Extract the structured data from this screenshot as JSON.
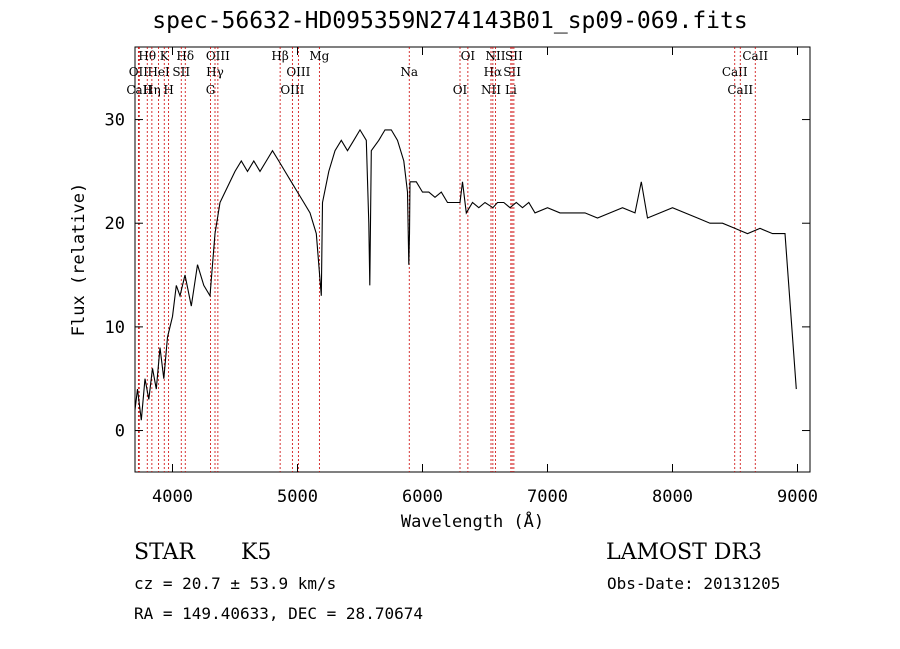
{
  "chart_data": {
    "type": "line",
    "title": "spec-56632-HD095359N274143B01_sp09-069.fits",
    "xlabel": "Wavelength (Å)",
    "ylabel": "Flux (relative)",
    "xlim": [
      3700,
      9100
    ],
    "ylim": [
      -4,
      37
    ],
    "xticks": [
      4000,
      5000,
      6000,
      7000,
      8000,
      9000
    ],
    "yticks": [
      0,
      10,
      20,
      30
    ],
    "grid": false,
    "series_color": "#000000",
    "line_color": "#cc0000",
    "series": [
      {
        "x": [
          3700,
          3720,
          3750,
          3780,
          3810,
          3840,
          3870,
          3900,
          3930,
          3960,
          4000,
          4030,
          4060,
          4100,
          4150,
          4200,
          4250,
          4300,
          4340,
          4380,
          4420,
          4460,
          4500,
          4550,
          4600,
          4650,
          4700,
          4750,
          4800,
          4850,
          4900,
          4950,
          5000,
          5050,
          5100,
          5150,
          5190,
          5200,
          5250,
          5300,
          5350,
          5400,
          5450,
          5500,
          5550,
          5570,
          5578,
          5590,
          5650,
          5700,
          5750,
          5800,
          5850,
          5880,
          5890,
          5896,
          5900,
          5950,
          6000,
          6050,
          6100,
          6150,
          6200,
          6250,
          6300,
          6320,
          6350,
          6400,
          6450,
          6500,
          6563,
          6600,
          6650,
          6700,
          6750,
          6800,
          6850,
          6900,
          7000,
          7100,
          7200,
          7300,
          7400,
          7500,
          7600,
          7700,
          7750,
          7800,
          7900,
          8000,
          8100,
          8200,
          8300,
          8400,
          8500,
          8600,
          8700,
          8800,
          8900,
          8990
        ],
        "y": [
          2,
          4,
          1,
          5,
          3,
          6,
          4,
          8,
          5,
          9,
          11,
          14,
          13,
          15,
          12,
          16,
          14,
          13,
          19,
          22,
          23,
          24,
          25,
          26,
          25,
          26,
          25,
          26,
          27,
          26,
          25,
          24,
          23,
          22,
          21,
          19,
          13,
          22,
          25,
          27,
          28,
          27,
          28,
          29,
          28,
          20,
          14,
          27,
          28,
          29,
          29,
          28,
          26,
          23,
          16,
          19,
          24,
          24,
          23,
          23,
          22.5,
          23,
          22,
          22,
          22,
          24,
          21,
          22,
          21.5,
          22,
          21.5,
          22,
          22,
          21.5,
          22,
          21.5,
          22,
          21,
          21.5,
          21,
          21,
          21,
          20.5,
          21,
          21.5,
          21,
          24,
          20.5,
          21,
          21.5,
          21,
          20.5,
          20,
          20,
          19.5,
          19,
          19.5,
          19,
          19,
          4
        ]
      }
    ],
    "lines": [
      {
        "label": "Hθ",
        "x": 3798
      },
      {
        "label": "OII",
        "x": 3727
      },
      {
        "label": "CaII",
        "x": 3734
      },
      {
        "label": "K",
        "x": 3934
      },
      {
        "label": "HeI",
        "x": 3889
      },
      {
        "label": "Hη",
        "x": 3835
      },
      {
        "label": "Hδ",
        "x": 4102
      },
      {
        "label": "SII",
        "x": 4070
      },
      {
        "label": "H",
        "x": 3969
      },
      {
        "label": "OIII",
        "x": 4363
      },
      {
        "label": "Hγ",
        "x": 4340
      },
      {
        "label": "G",
        "x": 4304
      },
      {
        "label": "Hβ",
        "x": 4861
      },
      {
        "label": "OIII",
        "x": 5007
      },
      {
        "label": "OIII",
        "x": 4959
      },
      {
        "label": "Mg",
        "x": 5175
      },
      {
        "label": "Na",
        "x": 5894
      },
      {
        "label": "OI",
        "x": 6300
      },
      {
        "label": "OI",
        "x": 6363
      },
      {
        "label": "Hα",
        "x": 6563
      },
      {
        "label": "NII",
        "x": 6548
      },
      {
        "label": "NII",
        "x": 6584
      },
      {
        "label": "SII",
        "x": 6717
      },
      {
        "label": "Li",
        "x": 6707
      },
      {
        "label": "SII",
        "x": 6731
      },
      {
        "label": "CaII",
        "x": 8498
      },
      {
        "label": "CaII",
        "x": 8542
      },
      {
        "label": "CaII",
        "x": 8662
      }
    ]
  },
  "info": {
    "obj_class": "STAR",
    "subclass": "K5",
    "survey": "LAMOST DR3",
    "cz": "cz = 20.7 ± 53.9 km/s",
    "obs_date": "Obs-Date: 20131205",
    "coords": "RA = 149.40633, DEC =  28.70674"
  }
}
